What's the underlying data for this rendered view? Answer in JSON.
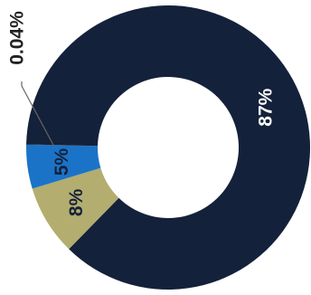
{
  "chart_data": {
    "type": "donut",
    "values": [
      87,
      8,
      5,
      0.04
    ],
    "value_labels": [
      "87%",
      "8%",
      "5%",
      "0.04%"
    ],
    "colors": [
      "#14213a",
      "#b3ad6f",
      "#1b73c8",
      "#14213a"
    ]
  }
}
